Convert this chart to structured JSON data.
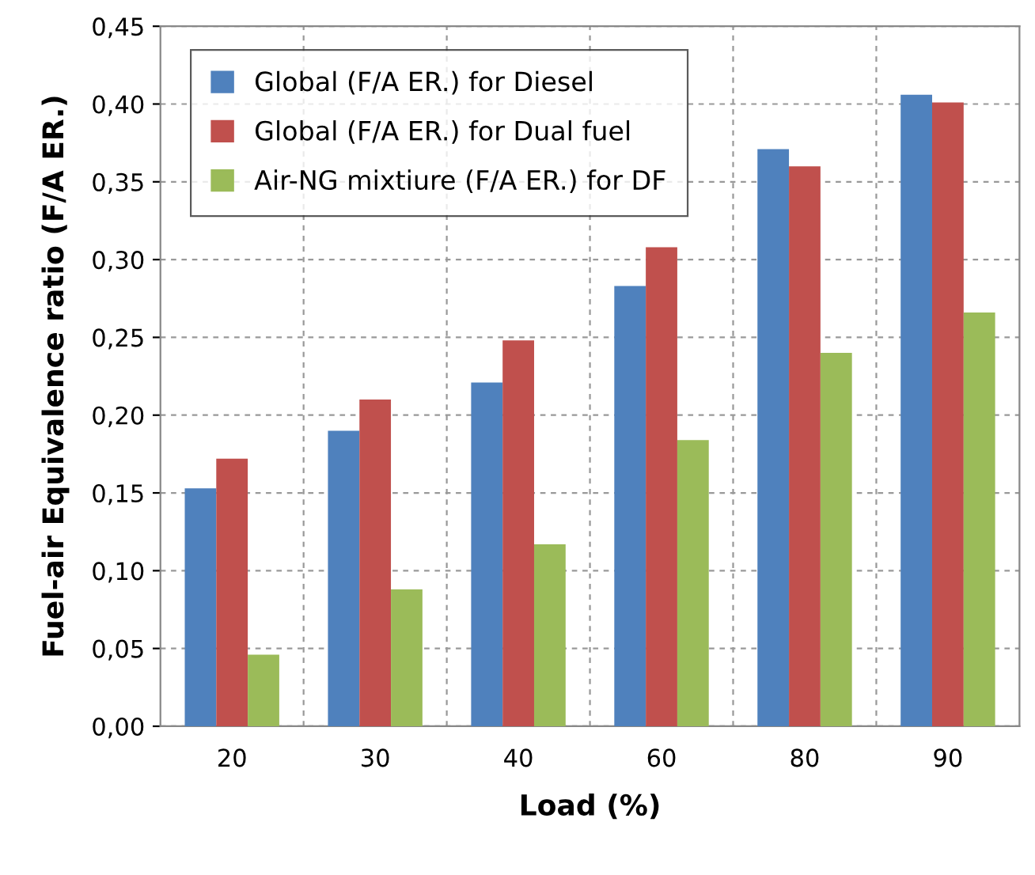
{
  "chart_data": {
    "type": "bar",
    "xlabel": "Load (%)",
    "ylabel": "Fuel-air Equivalence ratio (F/A ER.)",
    "categories": [
      "20",
      "30",
      "40",
      "60",
      "80",
      "90"
    ],
    "series": [
      {
        "name": "Global (F/A ER.) for Diesel",
        "color": "#4f81bd",
        "values": [
          0.153,
          0.19,
          0.221,
          0.283,
          0.371,
          0.406
        ]
      },
      {
        "name": "Global (F/A ER.) for Dual fuel",
        "color": "#c0504d",
        "values": [
          0.172,
          0.21,
          0.248,
          0.308,
          0.36,
          0.401
        ]
      },
      {
        "name": "Air-NG mixtiure (F/A ER.) for DF",
        "color": "#9bbb59",
        "values": [
          0.046,
          0.088,
          0.117,
          0.184,
          0.24,
          0.266
        ]
      }
    ],
    "ylim": [
      0,
      0.45
    ],
    "yticks": [
      {
        "value": 0,
        "label": "0,00"
      },
      {
        "value": 0.05,
        "label": "0,05"
      },
      {
        "value": 0.1,
        "label": "0,10"
      },
      {
        "value": 0.15,
        "label": "0,15"
      },
      {
        "value": 0.2,
        "label": "0,20"
      },
      {
        "value": 0.25,
        "label": "0,25"
      },
      {
        "value": 0.3,
        "label": "0,30"
      },
      {
        "value": 0.35,
        "label": "0,35"
      },
      {
        "value": 0.4,
        "label": "0,40"
      },
      {
        "value": 0.45,
        "label": "0,45"
      }
    ],
    "grid": true,
    "legend": "top left"
  }
}
